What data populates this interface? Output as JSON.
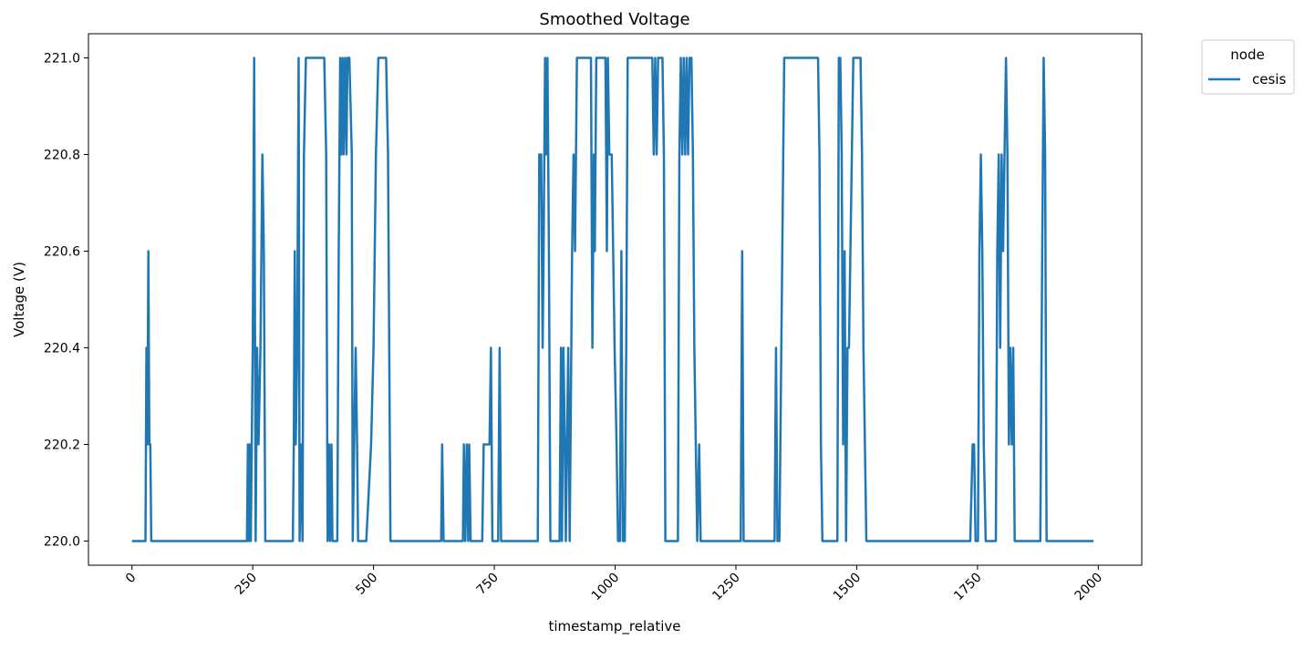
{
  "chart_data": {
    "type": "line",
    "title": "Smoothed Voltage",
    "xlabel": "timestamp_relative",
    "ylabel": "Voltage (V)",
    "xlim": [
      -90,
      2090
    ],
    "ylim": [
      219.95,
      221.05
    ],
    "xticks": [
      0,
      250,
      500,
      750,
      1000,
      1250,
      1500,
      1750,
      2000
    ],
    "yticks": [
      220.0,
      220.2,
      220.4,
      220.6,
      220.8,
      221.0
    ],
    "xtick_rotation": 45,
    "grid": false,
    "legend": {
      "title": "node",
      "position": "outside-top-right"
    },
    "series": [
      {
        "name": "cesis",
        "color": "#1f77b4",
        "points": [
          [
            0,
            220.0
          ],
          [
            28,
            220.0
          ],
          [
            30,
            220.4
          ],
          [
            32,
            220.2
          ],
          [
            34,
            220.6
          ],
          [
            36,
            220.2
          ],
          [
            38,
            220.2
          ],
          [
            40,
            220.0
          ],
          [
            238,
            220.0
          ],
          [
            240,
            220.2
          ],
          [
            242,
            220.0
          ],
          [
            244,
            220.2
          ],
          [
            246,
            220.0
          ],
          [
            250,
            220.4
          ],
          [
            253,
            221.0
          ],
          [
            256,
            220.0
          ],
          [
            259,
            220.4
          ],
          [
            262,
            220.2
          ],
          [
            266,
            220.4
          ],
          [
            270,
            220.8
          ],
          [
            273,
            220.6
          ],
          [
            276,
            220.0
          ],
          [
            333,
            220.0
          ],
          [
            335,
            220.2
          ],
          [
            337,
            220.6
          ],
          [
            339,
            220.2
          ],
          [
            342,
            220.4
          ],
          [
            345,
            221.0
          ],
          [
            347,
            220.0
          ],
          [
            350,
            220.2
          ],
          [
            353,
            220.0
          ],
          [
            356,
            220.8
          ],
          [
            360,
            221.0
          ],
          [
            398,
            221.0
          ],
          [
            402,
            220.8
          ],
          [
            405,
            220.0
          ],
          [
            408,
            220.2
          ],
          [
            410,
            220.0
          ],
          [
            413,
            220.2
          ],
          [
            415,
            220.0
          ],
          [
            425,
            220.0
          ],
          [
            428,
            220.6
          ],
          [
            431,
            221.0
          ],
          [
            433,
            220.8
          ],
          [
            436,
            221.0
          ],
          [
            438,
            220.8
          ],
          [
            441,
            221.0
          ],
          [
            444,
            220.8
          ],
          [
            446,
            221.0
          ],
          [
            450,
            221.0
          ],
          [
            455,
            220.8
          ],
          [
            457,
            220.0
          ],
          [
            460,
            220.2
          ],
          [
            463,
            220.4
          ],
          [
            466,
            220.2
          ],
          [
            468,
            220.0
          ],
          [
            485,
            220.0
          ],
          [
            495,
            220.2
          ],
          [
            500,
            220.4
          ],
          [
            505,
            220.8
          ],
          [
            510,
            221.0
          ],
          [
            526,
            221.0
          ],
          [
            530,
            220.8
          ],
          [
            535,
            220.0
          ],
          [
            640,
            220.0
          ],
          [
            642,
            220.2
          ],
          [
            645,
            220.0
          ],
          [
            685,
            220.0
          ],
          [
            687,
            220.2
          ],
          [
            690,
            220.0
          ],
          [
            693,
            220.2
          ],
          [
            696,
            220.0
          ],
          [
            698,
            220.2
          ],
          [
            701,
            220.0
          ],
          [
            725,
            220.0
          ],
          [
            728,
            220.2
          ],
          [
            740,
            220.2
          ],
          [
            743,
            220.4
          ],
          [
            746,
            220.0
          ],
          [
            758,
            220.0
          ],
          [
            761,
            220.4
          ],
          [
            764,
            220.0
          ],
          [
            840,
            220.0
          ],
          [
            843,
            220.8
          ],
          [
            847,
            220.8
          ],
          [
            850,
            220.4
          ],
          [
            852,
            220.6
          ],
          [
            855,
            221.0
          ],
          [
            857,
            220.8
          ],
          [
            860,
            221.0
          ],
          [
            863,
            220.6
          ],
          [
            866,
            220.0
          ],
          [
            880,
            220.0
          ],
          [
            885,
            220.0
          ],
          [
            888,
            220.4
          ],
          [
            890,
            220.0
          ],
          [
            893,
            220.4
          ],
          [
            896,
            220.2
          ],
          [
            898,
            220.0
          ],
          [
            903,
            220.4
          ],
          [
            906,
            220.0
          ],
          [
            911,
            220.6
          ],
          [
            914,
            220.8
          ],
          [
            917,
            220.6
          ],
          [
            921,
            221.0
          ],
          [
            950,
            221.0
          ],
          [
            953,
            220.4
          ],
          [
            956,
            220.8
          ],
          [
            958,
            220.6
          ],
          [
            961,
            221.0
          ],
          [
            980,
            221.0
          ],
          [
            983,
            220.6
          ],
          [
            985,
            221.0
          ],
          [
            988,
            220.8
          ],
          [
            993,
            220.8
          ],
          [
            996,
            220.6
          ],
          [
            999,
            220.4
          ],
          [
            1003,
            220.2
          ],
          [
            1006,
            220.0
          ],
          [
            1010,
            220.0
          ],
          [
            1013,
            220.6
          ],
          [
            1016,
            220.0
          ],
          [
            1020,
            220.0
          ],
          [
            1023,
            220.4
          ],
          [
            1026,
            221.0
          ],
          [
            1077,
            221.0
          ],
          [
            1080,
            220.8
          ],
          [
            1083,
            221.0
          ],
          [
            1086,
            220.8
          ],
          [
            1089,
            221.0
          ],
          [
            1098,
            221.0
          ],
          [
            1101,
            220.8
          ],
          [
            1104,
            220.0
          ],
          [
            1130,
            220.0
          ],
          [
            1133,
            220.8
          ],
          [
            1136,
            221.0
          ],
          [
            1139,
            220.8
          ],
          [
            1142,
            221.0
          ],
          [
            1145,
            220.8
          ],
          [
            1148,
            221.0
          ],
          [
            1151,
            220.8
          ],
          [
            1154,
            221.0
          ],
          [
            1158,
            221.0
          ],
          [
            1161,
            220.8
          ],
          [
            1164,
            220.4
          ],
          [
            1167,
            220.2
          ],
          [
            1170,
            220.0
          ],
          [
            1174,
            220.2
          ],
          [
            1177,
            220.0
          ],
          [
            1260,
            220.0
          ],
          [
            1263,
            220.6
          ],
          [
            1266,
            220.0
          ],
          [
            1330,
            220.0
          ],
          [
            1333,
            220.4
          ],
          [
            1336,
            220.0
          ],
          [
            1340,
            220.0
          ],
          [
            1350,
            221.0
          ],
          [
            1420,
            221.0
          ],
          [
            1423,
            220.8
          ],
          [
            1426,
            220.2
          ],
          [
            1429,
            220.0
          ],
          [
            1460,
            220.0
          ],
          [
            1463,
            221.0
          ],
          [
            1466,
            221.0
          ],
          [
            1469,
            220.8
          ],
          [
            1472,
            220.2
          ],
          [
            1475,
            220.6
          ],
          [
            1478,
            220.0
          ],
          [
            1481,
            220.4
          ],
          [
            1484,
            220.4
          ],
          [
            1487,
            220.6
          ],
          [
            1490,
            220.8
          ],
          [
            1493,
            221.0
          ],
          [
            1508,
            221.0
          ],
          [
            1511,
            220.8
          ],
          [
            1514,
            220.4
          ],
          [
            1517,
            220.2
          ],
          [
            1520,
            220.0
          ],
          [
            1735,
            220.0
          ],
          [
            1740,
            220.2
          ],
          [
            1743,
            220.2
          ],
          [
            1746,
            220.0
          ],
          [
            1751,
            220.0
          ],
          [
            1754,
            220.6
          ],
          [
            1757,
            220.8
          ],
          [
            1760,
            220.6
          ],
          [
            1763,
            220.2
          ],
          [
            1767,
            220.0
          ],
          [
            1788,
            220.0
          ],
          [
            1791,
            220.6
          ],
          [
            1794,
            220.8
          ],
          [
            1797,
            220.4
          ],
          [
            1800,
            220.8
          ],
          [
            1803,
            220.6
          ],
          [
            1806,
            220.8
          ],
          [
            1809,
            221.0
          ],
          [
            1812,
            220.8
          ],
          [
            1815,
            220.2
          ],
          [
            1818,
            220.4
          ],
          [
            1821,
            220.2
          ],
          [
            1824,
            220.4
          ],
          [
            1827,
            220.0
          ],
          [
            1880,
            220.0
          ],
          [
            1884,
            220.6
          ],
          [
            1887,
            221.0
          ],
          [
            1890,
            220.8
          ],
          [
            1893,
            220.0
          ],
          [
            1990,
            220.0
          ]
        ]
      }
    ]
  }
}
